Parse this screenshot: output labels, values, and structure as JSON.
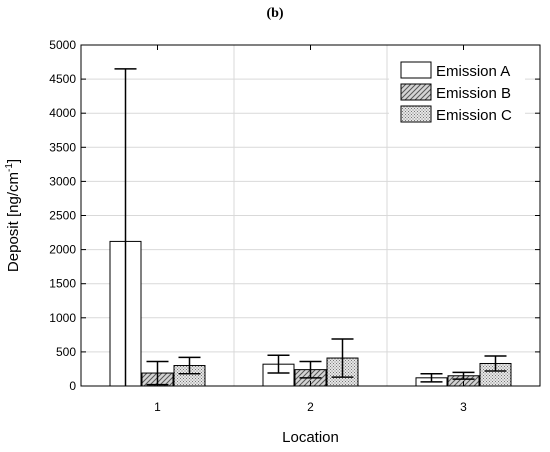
{
  "panel_label": "(b)",
  "chart_data": {
    "type": "bar",
    "title": "",
    "xlabel": "Location",
    "ylabel_main": "Deposit [ng/cm",
    "ylabel_sup": "-1",
    "ylabel_end": "]",
    "ylim": [
      0,
      5000
    ],
    "yticks": [
      0,
      500,
      1000,
      1500,
      2000,
      2500,
      3000,
      3500,
      4000,
      4500,
      5000
    ],
    "categories": [
      "1",
      "2",
      "3"
    ],
    "grid": true,
    "legend_position": "top-right",
    "series": [
      {
        "name": "Emission A",
        "values": [
          2120,
          320,
          120
        ],
        "errors": [
          2530,
          130,
          60
        ],
        "fill": "white"
      },
      {
        "name": "Emission B",
        "values": [
          190,
          240,
          150
        ],
        "errors": [
          170,
          120,
          50
        ],
        "fill": "hatch"
      },
      {
        "name": "Emission C",
        "values": [
          300,
          410,
          330
        ],
        "errors": [
          120,
          280,
          110
        ],
        "fill": "dots"
      }
    ]
  }
}
